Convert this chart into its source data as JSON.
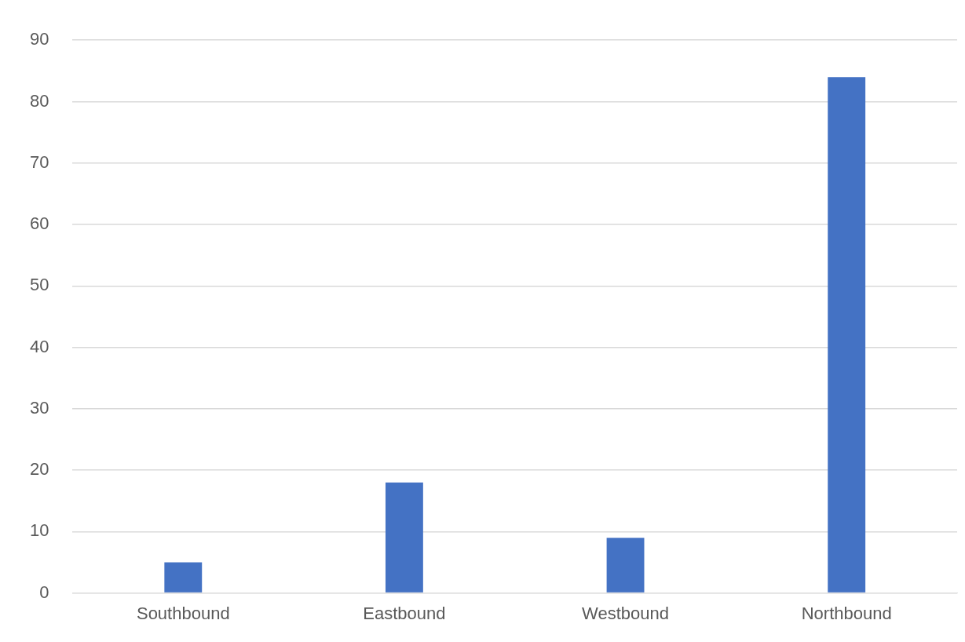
{
  "chart_data": {
    "type": "bar",
    "categories": [
      "Southbound",
      "Eastbound",
      "Westbound",
      "Northbound"
    ],
    "series": [
      {
        "color": "#4472c4",
        "values": [
          5,
          18,
          9,
          84
        ]
      }
    ],
    "ylim": [
      0,
      90
    ],
    "yticks": [
      0,
      10,
      20,
      30,
      40,
      50,
      60,
      70,
      80,
      90
    ],
    "grid": "y",
    "legend": false
  }
}
